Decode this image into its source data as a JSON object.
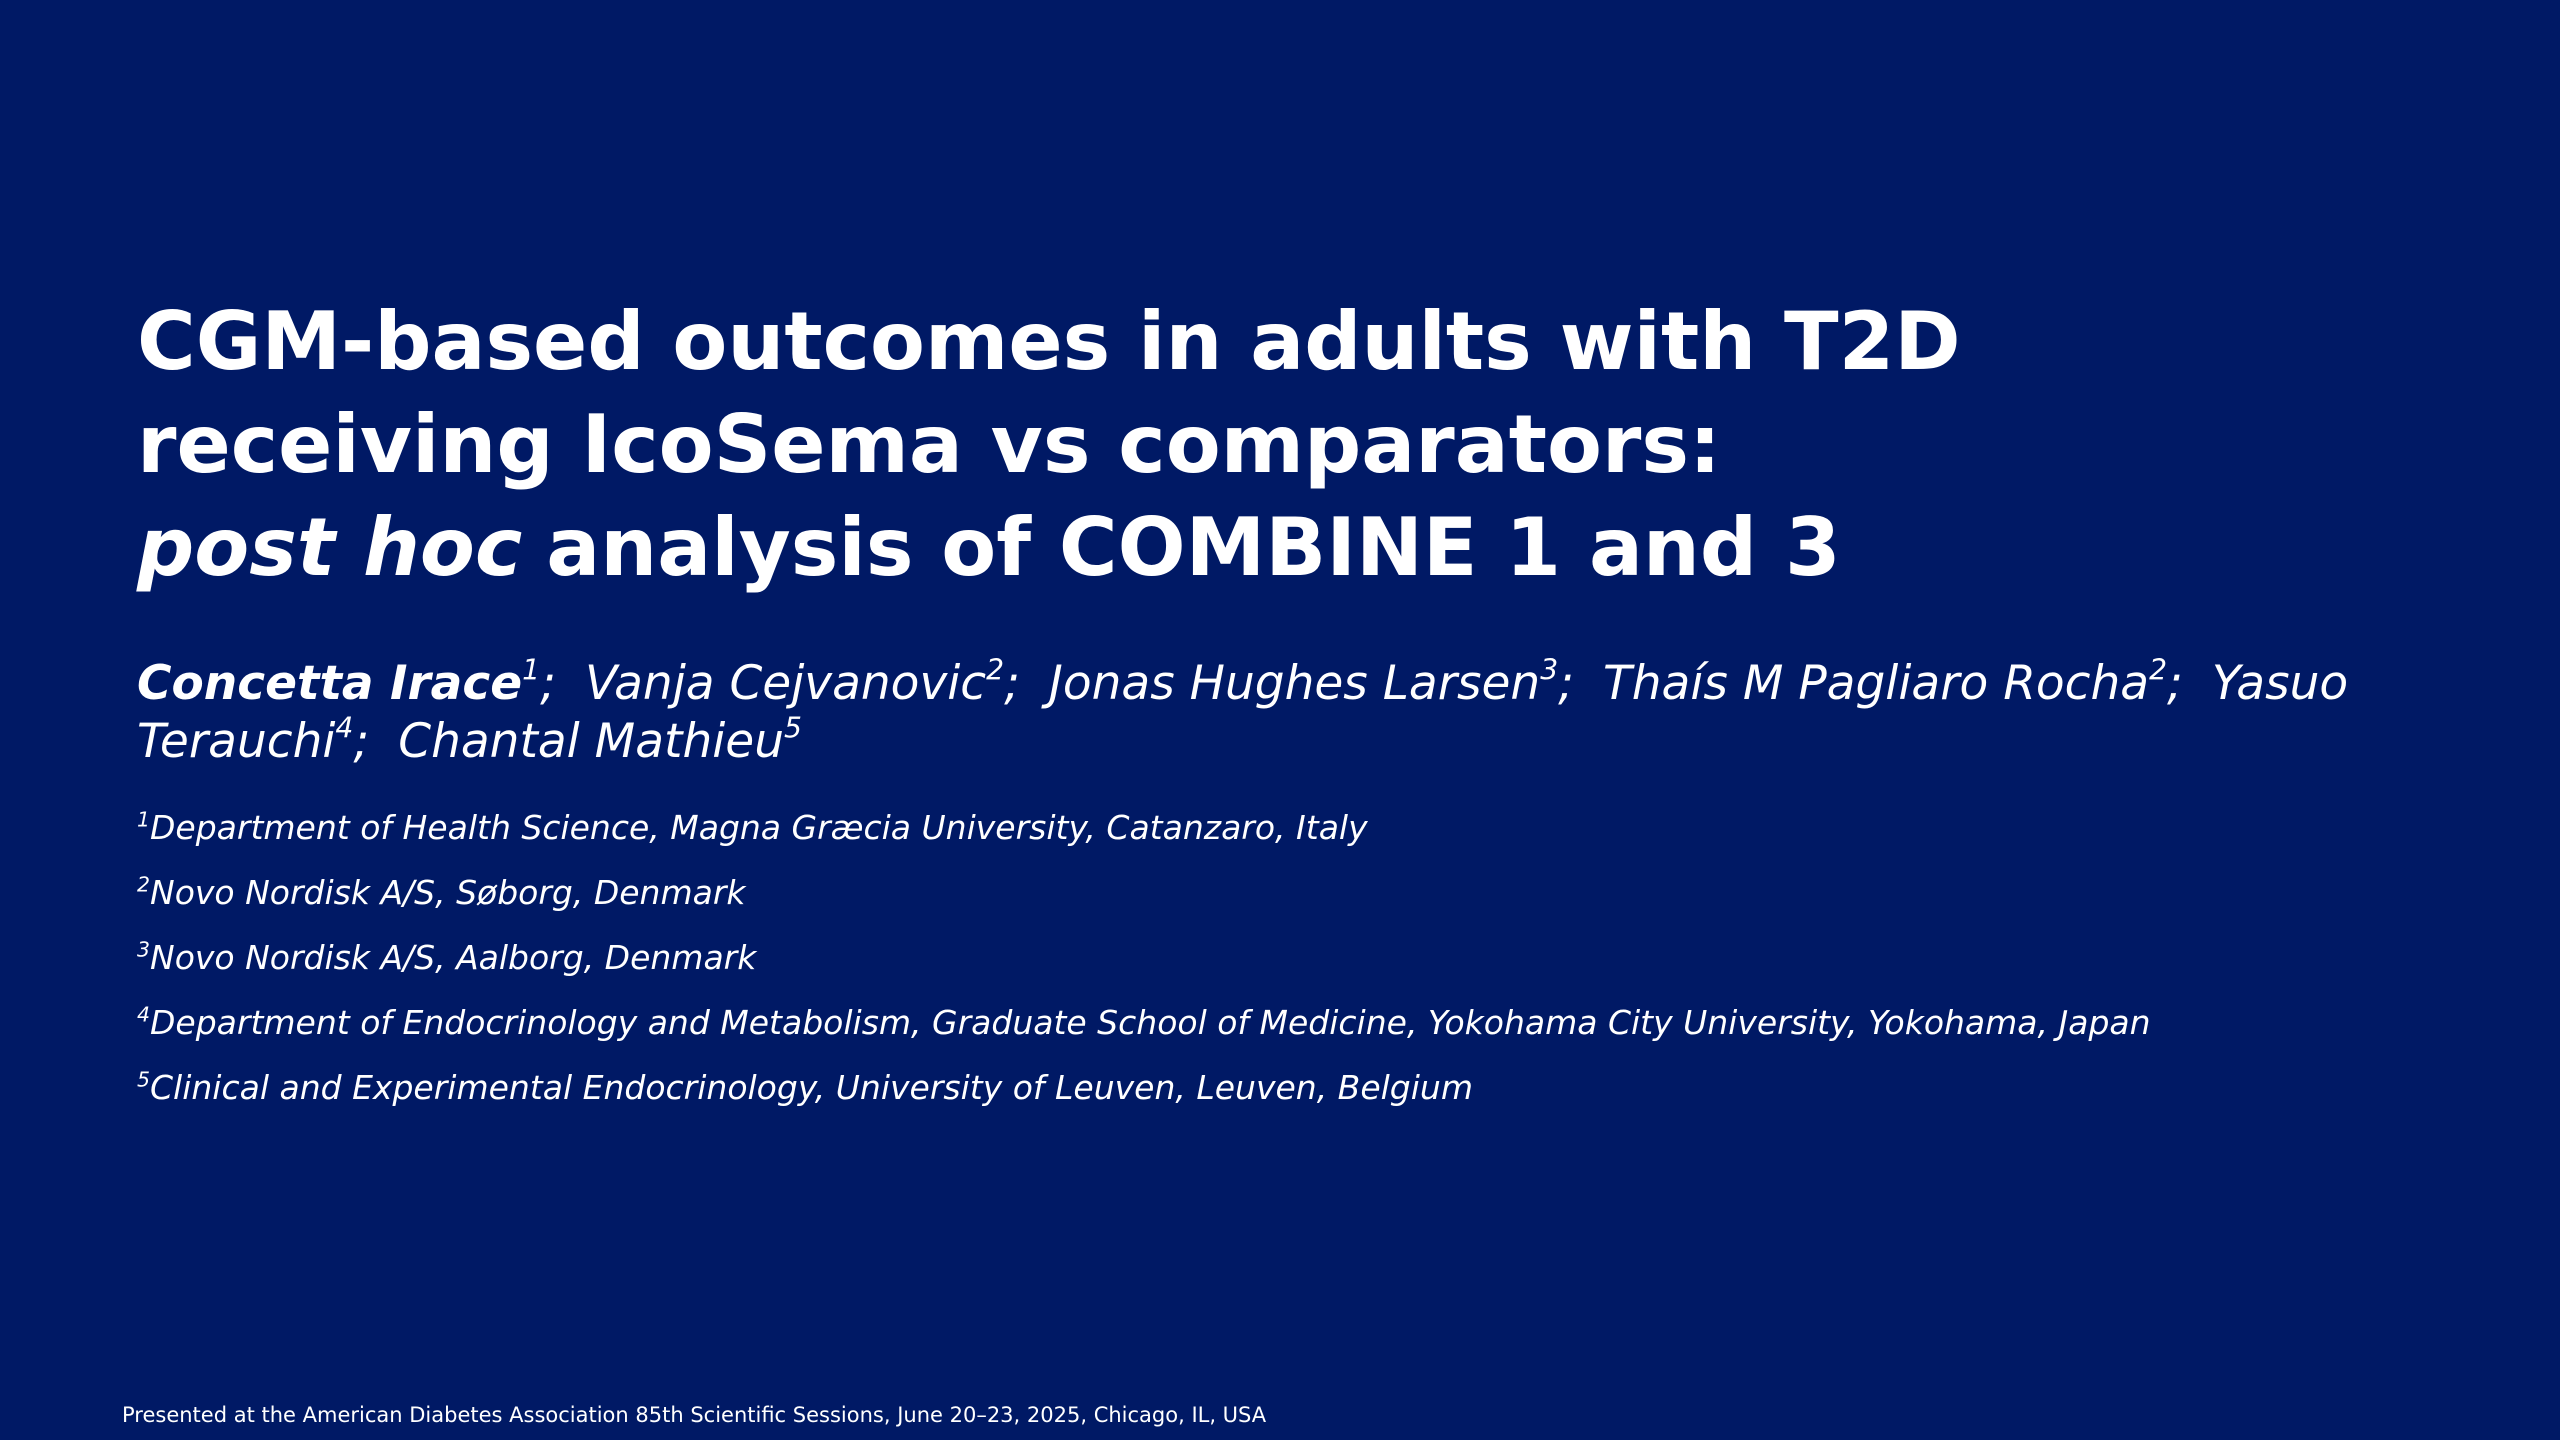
{
  "title": {
    "line1": "CGM-based outcomes in adults with T2D",
    "line2": "receiving IcoSema vs comparators:",
    "line3_italic": "post hoc",
    "line3_rest": "analysis of COMBINE 1 and 3"
  },
  "authors": [
    {
      "name": "Concetta Irace",
      "affiliation": "1",
      "separator": ";"
    },
    {
      "name": "Vanja Cejvanovic",
      "affiliation": "2",
      "separator": ";"
    },
    {
      "name": "Jonas Hughes Larsen",
      "affiliation": "3",
      "separator": ";"
    },
    {
      "name": "Thaís M Pagliaro Rocha",
      "affiliation": "2",
      "separator": ";"
    },
    {
      "name": "Yasuo Terauchi",
      "affiliation": "4",
      "separator": ";"
    },
    {
      "name": "Chantal Mathieu",
      "affiliation": "5"
    }
  ],
  "affiliations": [
    {
      "number": "1",
      "text": "Department of Health Science, Magna Græcia University, Catanzaro, Italy"
    },
    {
      "number": "2",
      "text": "Novo Nordisk A/S, Søborg, Denmark"
    },
    {
      "number": "3",
      "text": "Novo Nordisk A/S, Aalborg, Denmark"
    },
    {
      "number": "4",
      "text": "Department of Endocrinology and Metabolism, Graduate School of Medicine, Yokohama City University, Yokohama, Japan"
    },
    {
      "number": "5",
      "text": "Clinical and Experimental Endocrinology, University of Leuven, Leuven, Belgium"
    }
  ],
  "footer": "Presented at the American Diabetes Association 85th Scientific Sessions, June 20–23, 2025, Chicago, IL, USA"
}
